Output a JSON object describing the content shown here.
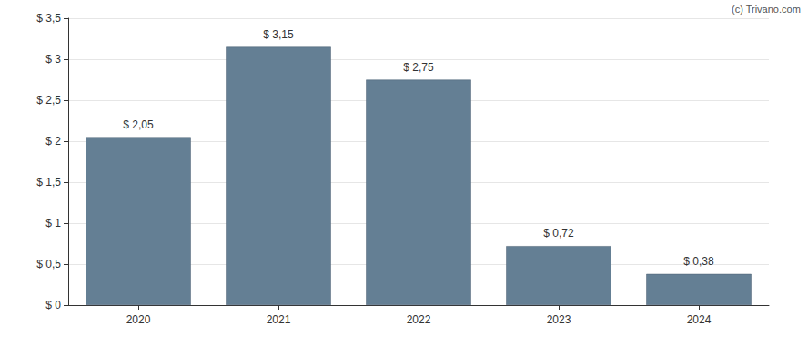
{
  "chart_data": {
    "type": "bar",
    "annotation": "(c) Trivano.com",
    "categories": [
      "2020",
      "2021",
      "2022",
      "2023",
      "2024"
    ],
    "values": [
      2.05,
      3.15,
      2.75,
      0.72,
      0.38
    ],
    "value_labels": [
      "$ 2,05",
      "$ 3,15",
      "$ 2,75",
      "$ 0,72",
      "$ 0,38"
    ],
    "data_labels": true,
    "color": "#647f94",
    "ylim": [
      0,
      3.5
    ],
    "yticks": [
      {
        "value": 0,
        "label": "$ 0"
      },
      {
        "value": 0.5,
        "label": "$ 0,5"
      },
      {
        "value": 1,
        "label": "$ 1"
      },
      {
        "value": 1.5,
        "label": "$ 1,5"
      },
      {
        "value": 2,
        "label": "$ 2"
      },
      {
        "value": 2.5,
        "label": "$ 2,5"
      },
      {
        "value": 3,
        "label": "$ 3"
      },
      {
        "value": 3.5,
        "label": "$ 3,5"
      }
    ],
    "grid": true
  }
}
